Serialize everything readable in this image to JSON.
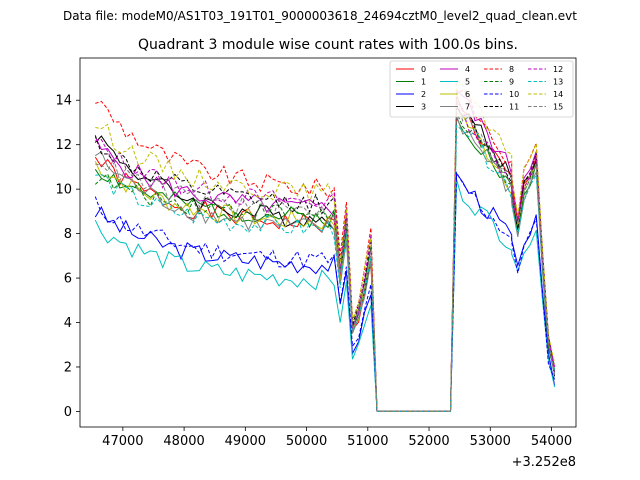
{
  "chart_data": {
    "type": "line",
    "suptitle": "Data file: modeM0/AS1T03_191T01_9000003618_24694cztM0_level2_quad_clean.evt",
    "title": "Quadrant 3 module wise count rates with 100.0s bins.",
    "xlabel": "",
    "ylabel": "",
    "x_offset_label": "+3.252e8",
    "xlim": [
      46300,
      54400
    ],
    "ylim": [
      -0.7,
      15.9
    ],
    "xticks": [
      47000,
      48000,
      49000,
      50000,
      51000,
      52000,
      53000,
      54000
    ],
    "xtick_labels": [
      "47000",
      "48000",
      "49000",
      "50000",
      "51000",
      "52000",
      "53000",
      "54000"
    ],
    "yticks": [
      0,
      2,
      4,
      6,
      8,
      10,
      12,
      14
    ],
    "ytick_labels": [
      "0",
      "2",
      "4",
      "6",
      "8",
      "10",
      "12",
      "14"
    ],
    "x_start": 46550,
    "x_step": 100,
    "legend_position": "upper-right",
    "segments": [
      {
        "x0": 46550,
        "x1": 50450,
        "kind": "decay"
      },
      {
        "x0": 50550,
        "x1": 51150,
        "kind": "dip",
        "x": [
          50550,
          50650,
          50750,
          50850,
          50950,
          51050,
          51150
        ],
        "rel": [
          0.7,
          0.95,
          0.42,
          0.5,
          0.65,
          0.82,
          0
        ]
      },
      {
        "x0": 51150,
        "x1": 52350,
        "kind": "zero"
      },
      {
        "x0": 52450,
        "x1": 53350,
        "kind": "recover"
      },
      {
        "x0": 53350,
        "x1": 54050,
        "kind": "tail",
        "x": [
          53350,
          53450,
          53550,
          53650,
          53750,
          53850,
          53950,
          54050
        ],
        "rel": [
          0.78,
          0.66,
          0.8,
          0.84,
          0.9,
          0.55,
          0.25,
          0.14
        ]
      }
    ],
    "series": [
      {
        "name": "0",
        "color": "#ff0000",
        "style": "solid",
        "start": 11.4,
        "plateau": 8.4,
        "peak": 12.6,
        "seed": 1
      },
      {
        "name": "1",
        "color": "#008000",
        "style": "solid",
        "start": 11.0,
        "plateau": 8.7,
        "peak": 12.2,
        "seed": 2
      },
      {
        "name": "2",
        "color": "#0000ff",
        "style": "solid",
        "start": 9.0,
        "plateau": 6.6,
        "peak": 9.6,
        "seed": 3
      },
      {
        "name": "3",
        "color": "#000000",
        "style": "solid",
        "start": 12.5,
        "plateau": 8.6,
        "peak": 12.8,
        "seed": 4
      },
      {
        "name": "4",
        "color": "#bf00bf",
        "style": "solid",
        "start": 12.0,
        "plateau": 9.1,
        "peak": 13.2,
        "seed": 5
      },
      {
        "name": "5",
        "color": "#00bfbf",
        "style": "solid",
        "start": 8.4,
        "plateau": 5.9,
        "peak": 9.2,
        "seed": 6
      },
      {
        "name": "6",
        "color": "#bfbf00",
        "style": "solid",
        "start": 11.2,
        "plateau": 8.5,
        "peak": 12.4,
        "seed": 7
      },
      {
        "name": "7",
        "color": "#808080",
        "style": "solid",
        "start": 11.6,
        "plateau": 8.2,
        "peak": 12.0,
        "seed": 8
      },
      {
        "name": "8",
        "color": "#ff0000",
        "style": "dashed",
        "start": 14.1,
        "plateau": 10.0,
        "peak": 13.4,
        "seed": 9
      },
      {
        "name": "9",
        "color": "#008000",
        "style": "dashed",
        "start": 10.6,
        "plateau": 8.9,
        "peak": 12.3,
        "seed": 10
      },
      {
        "name": "10",
        "color": "#0000ff",
        "style": "dashed",
        "start": 9.3,
        "plateau": 6.8,
        "peak": 9.5,
        "seed": 11
      },
      {
        "name": "11",
        "color": "#000000",
        "style": "dashed",
        "start": 12.2,
        "plateau": 9.3,
        "peak": 12.7,
        "seed": 12
      },
      {
        "name": "12",
        "color": "#bf00bf",
        "style": "dashed",
        "start": 12.1,
        "plateau": 9.4,
        "peak": 12.6,
        "seed": 13
      },
      {
        "name": "13",
        "color": "#00bfbf",
        "style": "dashed",
        "start": 10.7,
        "plateau": 8.2,
        "peak": 12.1,
        "seed": 14
      },
      {
        "name": "14",
        "color": "#bfbf00",
        "style": "dashed",
        "start": 13.0,
        "plateau": 9.8,
        "peak": 13.6,
        "seed": 15
      },
      {
        "name": "15",
        "color": "#808080",
        "style": "dashed",
        "start": 11.5,
        "plateau": 9.0,
        "peak": 12.5,
        "seed": 16
      }
    ]
  }
}
